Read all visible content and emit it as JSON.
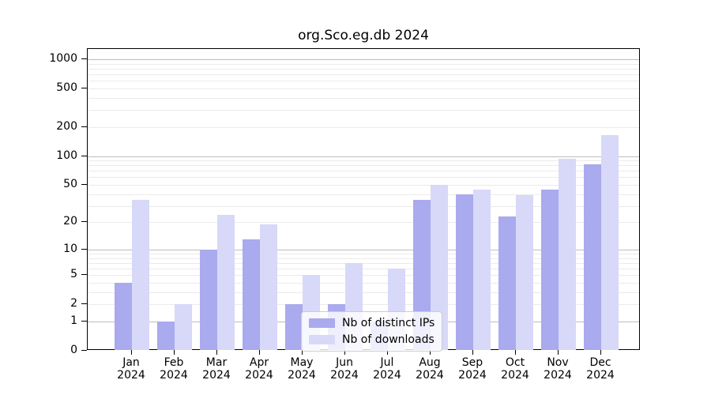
{
  "chart_data": {
    "type": "bar",
    "title": "org.Sco.eg.db 2024",
    "scale": "log1p",
    "categories": [
      "Jan 2024",
      "Feb 2024",
      "Mar 2024",
      "Apr 2024",
      "May 2024",
      "Jun 2024",
      "Jul 2024",
      "Aug 2024",
      "Sep 2024",
      "Oct 2024",
      "Nov 2024",
      "Dec 2024"
    ],
    "series": [
      {
        "name": "Nb of distinct IPs",
        "color": "#aaaaee",
        "values": [
          4,
          1,
          10,
          13,
          2,
          2,
          1,
          35,
          40,
          23,
          45,
          82
        ]
      },
      {
        "name": "Nb of downloads",
        "color": "#d8d8f8",
        "values": [
          35,
          2,
          24,
          19,
          5,
          7,
          6,
          50,
          45,
          39,
          94,
          165
        ]
      }
    ],
    "yticks": [
      0,
      1,
      2,
      5,
      10,
      20,
      50,
      100,
      200,
      500,
      1000
    ],
    "ylim": [
      0,
      1276
    ],
    "xlabel": "",
    "ylabel": "",
    "grid": "major and minor horizontal gridlines",
    "legend_position": "lower center"
  },
  "colors": {
    "bar_distinct_ips": "#aaaaee",
    "bar_downloads": "#d8d8f8",
    "major_grid": "#bdbdbd",
    "minor_grid": "#ebebeb",
    "axis": "#000000",
    "background": "#ffffff"
  }
}
